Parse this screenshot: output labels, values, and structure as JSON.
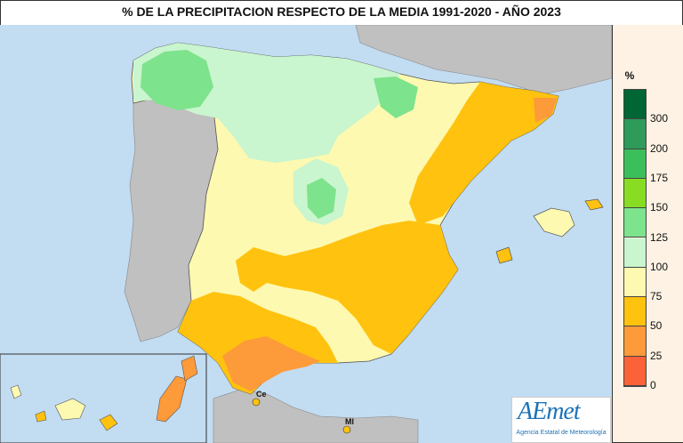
{
  "title": "% DE LA PRECIPITACION RESPECTO DE LA MEDIA 1991-2020 - AÑO  2023",
  "legend": {
    "unit": "%",
    "classes": [
      {
        "color": "#006633"
      },
      {
        "color": "#2e9b5a"
      },
      {
        "color": "#3bbf5a"
      },
      {
        "color": "#88dd22"
      },
      {
        "color": "#7de38c"
      },
      {
        "color": "#c9f5cf"
      },
      {
        "color": "#fef9b0"
      },
      {
        "color": "#ffc20f"
      },
      {
        "color": "#fd9a3a"
      },
      {
        "color": "#fc6238"
      }
    ],
    "ticks": [
      "300",
      "200",
      "175",
      "150",
      "125",
      "100",
      "75",
      "50",
      "25",
      "0"
    ]
  },
  "cities": {
    "ceuta": "Ce",
    "melilla": "Ml"
  },
  "logo": {
    "text": "AEmet",
    "subtitle": "Agencia Estatal de Meteorología"
  }
}
